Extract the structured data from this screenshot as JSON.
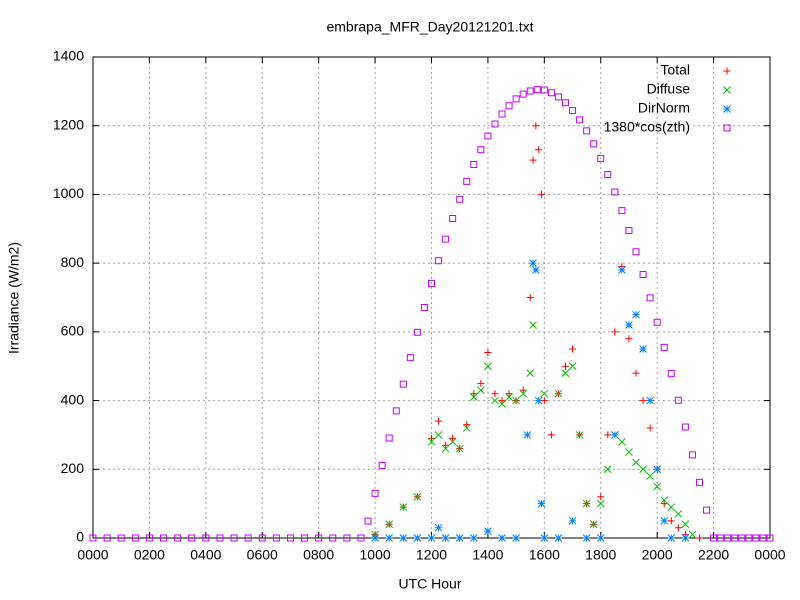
{
  "chart_data": {
    "type": "scatter",
    "title": "embrapa_MFR_Day20121201.txt",
    "xlabel": "UTC Hour",
    "ylabel": "Irradiance (W/m2)",
    "xlim": [
      0,
      24
    ],
    "ylim": [
      0,
      1400
    ],
    "xticks": [
      {
        "value": 0,
        "label": "0000"
      },
      {
        "value": 2,
        "label": "0200"
      },
      {
        "value": 4,
        "label": "0400"
      },
      {
        "value": 6,
        "label": "0600"
      },
      {
        "value": 8,
        "label": "0800"
      },
      {
        "value": 10,
        "label": "1000"
      },
      {
        "value": 12,
        "label": "1200"
      },
      {
        "value": 14,
        "label": "1400"
      },
      {
        "value": 16,
        "label": "1600"
      },
      {
        "value": 18,
        "label": "1800"
      },
      {
        "value": 20,
        "label": "2000"
      },
      {
        "value": 22,
        "label": "2200"
      },
      {
        "value": 24,
        "label": "0000"
      }
    ],
    "yticks": [
      0,
      200,
      400,
      600,
      800,
      1000,
      1200,
      1400
    ],
    "grid": true,
    "legend": "top-right",
    "series": [
      {
        "name": "Total",
        "color": "#ff0000",
        "marker": "plus",
        "x": [
          10,
          10.5,
          11,
          11.5,
          12,
          12.25,
          12.5,
          12.75,
          13,
          13.25,
          13.5,
          13.75,
          14,
          14.25,
          14.5,
          14.75,
          15,
          15.25,
          15.5,
          15.6,
          15.7,
          15.8,
          15.9,
          16,
          16.25,
          16.5,
          16.75,
          17,
          17.25,
          17.5,
          17.75,
          18,
          18.25,
          18.5,
          18.75,
          19,
          19.25,
          19.5,
          19.75,
          20,
          20.25,
          20.5,
          20.75,
          21,
          21.5
        ],
        "values": [
          10,
          40,
          90,
          120,
          290,
          340,
          270,
          290,
          260,
          330,
          420,
          450,
          540,
          420,
          400,
          420,
          400,
          430,
          700,
          1100,
          1200,
          1130,
          1000,
          400,
          300,
          420,
          500,
          550,
          300,
          100,
          40,
          120,
          300,
          600,
          790,
          580,
          480,
          400,
          320,
          200,
          100,
          50,
          30,
          10,
          0
        ]
      },
      {
        "name": "Diffuse",
        "color": "#00c000",
        "marker": "cross",
        "x": [
          10,
          10.5,
          11,
          11.5,
          12,
          12.25,
          12.5,
          12.75,
          13,
          13.25,
          13.5,
          13.75,
          14,
          14.25,
          14.5,
          14.75,
          15,
          15.25,
          15.5,
          15.6,
          16,
          16.5,
          16.75,
          17,
          17.25,
          17.5,
          17.75,
          18,
          18.25,
          18.5,
          18.75,
          19,
          19.25,
          19.5,
          19.75,
          20,
          20.25,
          20.5,
          20.75,
          21,
          21.25
        ],
        "values": [
          10,
          40,
          90,
          120,
          280,
          300,
          260,
          280,
          260,
          320,
          410,
          430,
          500,
          400,
          390,
          410,
          400,
          420,
          480,
          620,
          420,
          420,
          480,
          500,
          300,
          100,
          40,
          100,
          200,
          300,
          280,
          250,
          220,
          200,
          180,
          150,
          110,
          90,
          70,
          40,
          10
        ]
      },
      {
        "name": "DirNorm",
        "color": "#0080ff",
        "marker": "star",
        "x": [
          10,
          10.5,
          11,
          11.5,
          12,
          12.25,
          12.5,
          13,
          13.5,
          14,
          14.5,
          15,
          15.4,
          15.6,
          15.7,
          15.8,
          15.9,
          16,
          16.5,
          17,
          17.5,
          18,
          18.5,
          18.75,
          19,
          19.25,
          19.5,
          19.75,
          20,
          20.25,
          20.5,
          21
        ],
        "values": [
          0,
          0,
          0,
          0,
          0,
          30,
          0,
          0,
          0,
          20,
          0,
          0,
          300,
          800,
          780,
          400,
          100,
          0,
          0,
          50,
          0,
          0,
          300,
          780,
          620,
          650,
          550,
          400,
          200,
          50,
          0,
          0
        ]
      },
      {
        "name": "1380*cos(zth)",
        "color": "#c000ff",
        "marker": "square",
        "x": [
          0,
          0.5,
          1,
          1.5,
          2,
          2.5,
          3,
          3.5,
          4,
          4.5,
          5,
          5.5,
          6,
          6.5,
          7,
          7.5,
          8,
          8.5,
          9,
          9.5,
          9.75,
          10,
          10.25,
          10.5,
          10.75,
          11,
          11.25,
          11.5,
          11.75,
          12,
          12.25,
          12.5,
          12.75,
          13,
          13.25,
          13.5,
          13.75,
          14,
          14.25,
          14.5,
          14.75,
          15,
          15.25,
          15.5,
          15.75,
          16,
          16.25,
          16.5,
          16.75,
          17,
          17.25,
          17.5,
          17.75,
          18,
          18.25,
          18.5,
          18.75,
          19,
          19.25,
          19.5,
          19.75,
          20,
          20.25,
          20.5,
          20.75,
          21,
          21.25,
          21.5,
          21.75,
          22,
          22.25,
          22.5,
          22.75,
          23,
          23.25,
          23.5,
          23.75,
          24
        ],
        "values": [
          0,
          0,
          0,
          0,
          0,
          0,
          0,
          0,
          0,
          0,
          0,
          0,
          0,
          0,
          0,
          0,
          0,
          0,
          0,
          0,
          49,
          130,
          211,
          291,
          370,
          448,
          525,
          599,
          671,
          741,
          807,
          870,
          930,
          986,
          1038,
          1087,
          1130,
          1170,
          1205,
          1234,
          1258,
          1278,
          1292,
          1301,
          1305,
          1304,
          1296,
          1284,
          1267,
          1244,
          1217,
          1185,
          1147,
          1105,
          1058,
          1007,
          953,
          895,
          833,
          767,
          699,
          628,
          555,
          479,
          401,
          323,
          242,
          162,
          81,
          0,
          0,
          0,
          0,
          0,
          0,
          0,
          0,
          0
        ]
      }
    ]
  }
}
